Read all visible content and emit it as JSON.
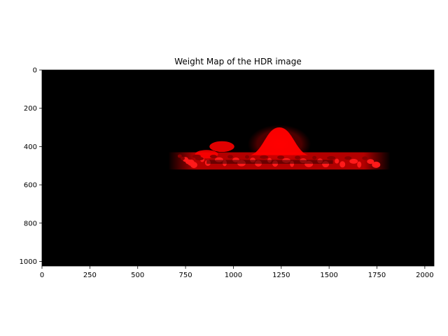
{
  "chart_data": {
    "type": "heatmap",
    "title": "Weight Map of the HDR image",
    "xlabel": "",
    "ylabel": "",
    "xlim": [
      0,
      2048
    ],
    "ylim": [
      1024,
      0
    ],
    "x_ticks": [
      0,
      250,
      500,
      750,
      1000,
      1250,
      1500,
      1750,
      2000
    ],
    "x_tick_labels": [
      "0",
      "250",
      "500",
      "750",
      "1000",
      "1250",
      "1500",
      "1750",
      "2000"
    ],
    "y_ticks": [
      0,
      200,
      400,
      600,
      800,
      1000
    ],
    "y_tick_labels": [
      "0",
      "200",
      "400",
      "600",
      "800",
      "1000"
    ],
    "grid": false,
    "background_color": "#000000",
    "highlight_color": "#ff0000",
    "bright_regions": [
      {
        "shape": "mound",
        "cx": 1240,
        "top": 300,
        "base": 445,
        "half_width": 150
      },
      {
        "shape": "blob",
        "cx": 940,
        "cy": 400,
        "rx": 65,
        "ry": 28
      },
      {
        "shape": "blob",
        "cx": 860,
        "cy": 440,
        "rx": 60,
        "ry": 22
      },
      {
        "shape": "band",
        "x_start": 660,
        "x_end": 1820,
        "y_top": 430,
        "y_bottom": 520
      }
    ]
  }
}
